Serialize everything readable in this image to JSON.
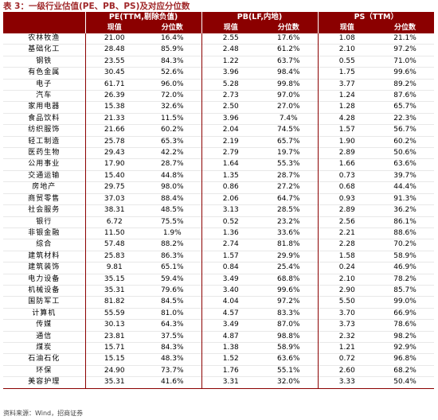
{
  "caption": "表 3：一级行业估值(PE、PB、PS)及对应分位数",
  "headers": {
    "pe": "PE(TTM,剔除负值)",
    "pb": "PB(LF,内地)",
    "ps": "PS（TTM）",
    "value": "现值",
    "percentile": "分位数"
  },
  "rows": [
    {
      "name": "农林牧渔",
      "pe": "21.00",
      "pe_pct": "16.4%",
      "pb": "2.55",
      "pb_pct": "17.6%",
      "ps": "1.08",
      "ps_pct": "21.1%"
    },
    {
      "name": "基础化工",
      "pe": "28.48",
      "pe_pct": "85.9%",
      "pb": "2.48",
      "pb_pct": "61.2%",
      "ps": "2.10",
      "ps_pct": "97.2%"
    },
    {
      "name": "钢铁",
      "pe": "23.55",
      "pe_pct": "84.3%",
      "pb": "1.22",
      "pb_pct": "63.7%",
      "ps": "0.55",
      "ps_pct": "71.0%"
    },
    {
      "name": "有色金属",
      "pe": "30.45",
      "pe_pct": "52.6%",
      "pb": "3.96",
      "pb_pct": "98.4%",
      "ps": "1.75",
      "ps_pct": "99.6%"
    },
    {
      "name": "电子",
      "pe": "61.71",
      "pe_pct": "96.0%",
      "pb": "5.28",
      "pb_pct": "99.8%",
      "ps": "3.77",
      "ps_pct": "89.2%"
    },
    {
      "name": "汽车",
      "pe": "26.39",
      "pe_pct": "72.0%",
      "pb": "2.73",
      "pb_pct": "97.0%",
      "ps": "1.24",
      "ps_pct": "87.6%"
    },
    {
      "name": "家用电器",
      "pe": "15.38",
      "pe_pct": "32.6%",
      "pb": "2.50",
      "pb_pct": "27.0%",
      "ps": "1.28",
      "ps_pct": "65.7%"
    },
    {
      "name": "食品饮料",
      "pe": "21.33",
      "pe_pct": "11.5%",
      "pb": "3.96",
      "pb_pct": "7.4%",
      "ps": "4.28",
      "ps_pct": "22.3%"
    },
    {
      "name": "纺织服饰",
      "pe": "21.66",
      "pe_pct": "60.2%",
      "pb": "2.04",
      "pb_pct": "74.5%",
      "ps": "1.57",
      "ps_pct": "56.7%"
    },
    {
      "name": "轻工制造",
      "pe": "25.78",
      "pe_pct": "65.3%",
      "pb": "2.19",
      "pb_pct": "65.7%",
      "ps": "1.90",
      "ps_pct": "60.2%"
    },
    {
      "name": "医药生物",
      "pe": "29.43",
      "pe_pct": "42.2%",
      "pb": "2.79",
      "pb_pct": "19.7%",
      "ps": "2.89",
      "ps_pct": "50.6%"
    },
    {
      "name": "公用事业",
      "pe": "17.90",
      "pe_pct": "28.7%",
      "pb": "1.64",
      "pb_pct": "55.3%",
      "ps": "1.66",
      "ps_pct": "63.6%"
    },
    {
      "name": "交通运输",
      "pe": "15.40",
      "pe_pct": "44.8%",
      "pb": "1.35",
      "pb_pct": "28.7%",
      "ps": "0.73",
      "ps_pct": "39.7%"
    },
    {
      "name": "房地产",
      "pe": "29.75",
      "pe_pct": "98.0%",
      "pb": "0.86",
      "pb_pct": "27.2%",
      "ps": "0.68",
      "ps_pct": "44.4%"
    },
    {
      "name": "商贸零售",
      "pe": "37.03",
      "pe_pct": "88.4%",
      "pb": "2.06",
      "pb_pct": "64.7%",
      "ps": "0.93",
      "ps_pct": "91.3%"
    },
    {
      "name": "社会服务",
      "pe": "38.31",
      "pe_pct": "48.5%",
      "pb": "3.13",
      "pb_pct": "28.5%",
      "ps": "2.89",
      "ps_pct": "36.2%"
    },
    {
      "name": "银行",
      "pe": "6.72",
      "pe_pct": "75.5%",
      "pb": "0.52",
      "pb_pct": "23.2%",
      "ps": "2.56",
      "ps_pct": "86.1%"
    },
    {
      "name": "非银金融",
      "pe": "11.50",
      "pe_pct": "1.9%",
      "pb": "1.36",
      "pb_pct": "33.6%",
      "ps": "2.21",
      "ps_pct": "88.6%"
    },
    {
      "name": "综合",
      "pe": "57.48",
      "pe_pct": "88.2%",
      "pb": "2.74",
      "pb_pct": "81.8%",
      "ps": "2.28",
      "ps_pct": "70.2%"
    },
    {
      "name": "建筑材料",
      "pe": "25.83",
      "pe_pct": "86.3%",
      "pb": "1.57",
      "pb_pct": "29.9%",
      "ps": "1.58",
      "ps_pct": "58.9%"
    },
    {
      "name": "建筑装饰",
      "pe": "9.81",
      "pe_pct": "65.1%",
      "pb": "0.84",
      "pb_pct": "25.4%",
      "ps": "0.24",
      "ps_pct": "46.9%"
    },
    {
      "name": "电力设备",
      "pe": "35.15",
      "pe_pct": "59.4%",
      "pb": "3.49",
      "pb_pct": "68.8%",
      "ps": "2.10",
      "ps_pct": "78.2%"
    },
    {
      "name": "机械设备",
      "pe": "35.31",
      "pe_pct": "79.6%",
      "pb": "3.40",
      "pb_pct": "99.6%",
      "ps": "2.90",
      "ps_pct": "85.7%"
    },
    {
      "name": "国防军工",
      "pe": "81.82",
      "pe_pct": "84.5%",
      "pb": "4.04",
      "pb_pct": "97.2%",
      "ps": "5.50",
      "ps_pct": "99.0%"
    },
    {
      "name": "计算机",
      "pe": "55.59",
      "pe_pct": "81.0%",
      "pb": "4.57",
      "pb_pct": "83.3%",
      "ps": "3.70",
      "ps_pct": "66.9%"
    },
    {
      "name": "传媒",
      "pe": "30.13",
      "pe_pct": "64.3%",
      "pb": "3.49",
      "pb_pct": "87.0%",
      "ps": "3.73",
      "ps_pct": "78.6%"
    },
    {
      "name": "通信",
      "pe": "23.81",
      "pe_pct": "37.5%",
      "pb": "4.87",
      "pb_pct": "98.8%",
      "ps": "2.32",
      "ps_pct": "98.2%"
    },
    {
      "name": "煤炭",
      "pe": "15.71",
      "pe_pct": "84.3%",
      "pb": "1.38",
      "pb_pct": "58.9%",
      "ps": "1.21",
      "ps_pct": "92.9%"
    },
    {
      "name": "石油石化",
      "pe": "15.15",
      "pe_pct": "48.3%",
      "pb": "1.52",
      "pb_pct": "63.6%",
      "ps": "0.72",
      "ps_pct": "96.8%"
    },
    {
      "name": "环保",
      "pe": "24.90",
      "pe_pct": "73.7%",
      "pb": "1.76",
      "pb_pct": "55.1%",
      "ps": "2.60",
      "ps_pct": "68.2%"
    },
    {
      "name": "美容护理",
      "pe": "35.31",
      "pe_pct": "41.6%",
      "pb": "3.31",
      "pb_pct": "32.0%",
      "ps": "3.33",
      "ps_pct": "50.4%"
    }
  ],
  "source": "资料来源：Wind，招商证券"
}
